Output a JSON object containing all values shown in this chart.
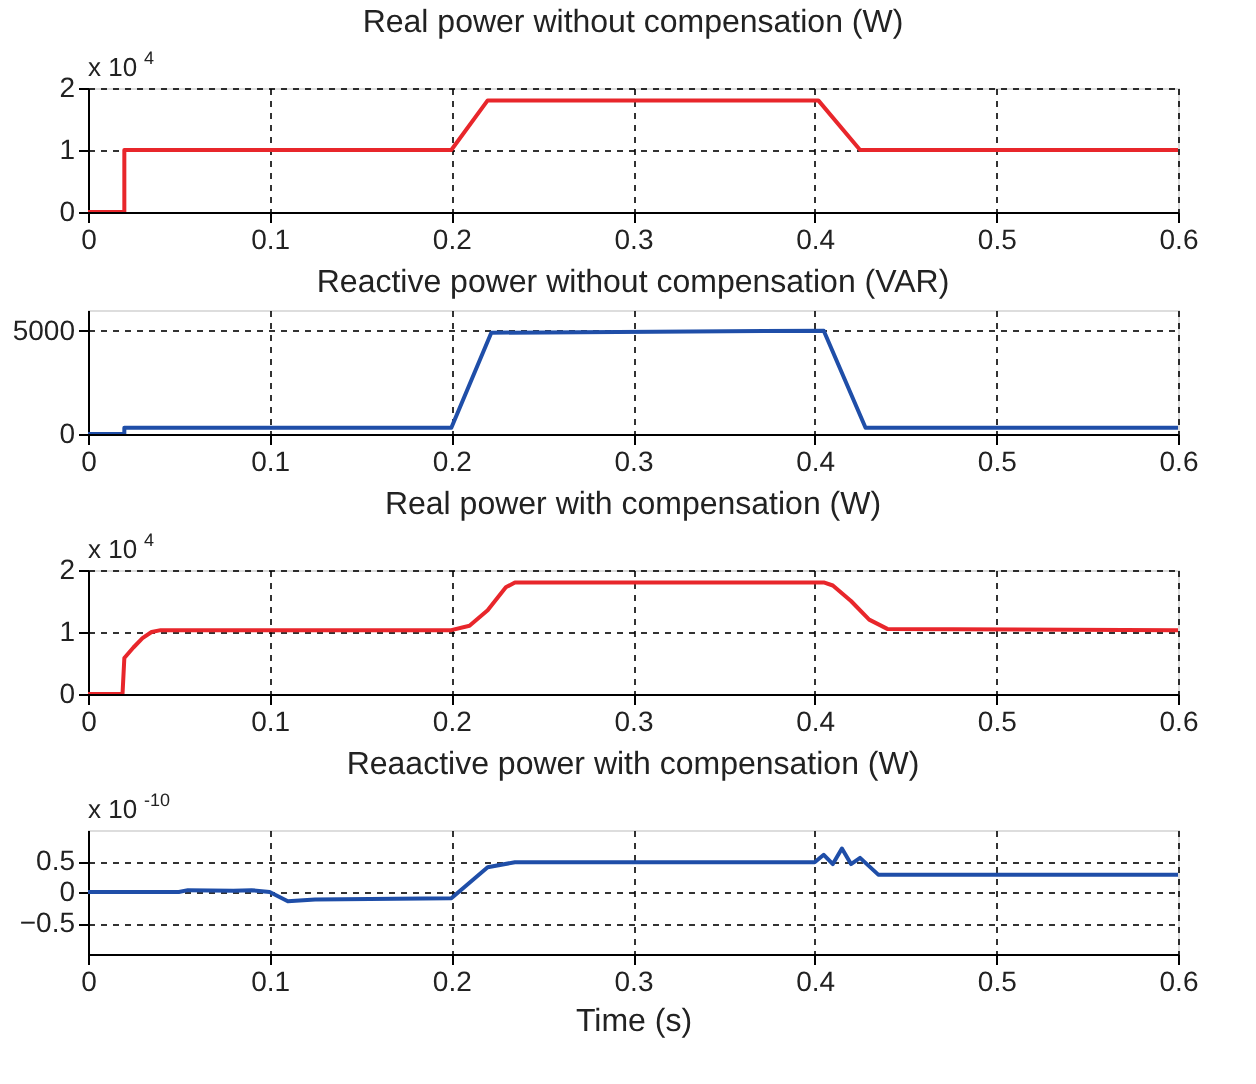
{
  "chart_data": [
    {
      "type": "line",
      "title": "Real power without compensation (W)",
      "annotations": [
        "x 10$^{4}$"
      ],
      "xlim": [
        0,
        0.6
      ],
      "xticks": [
        0,
        0.1,
        0.2,
        0.3,
        0.4,
        0.5,
        0.6
      ],
      "ylim": [
        0,
        2
      ],
      "yticks": [
        0,
        1,
        2
      ],
      "grid": true,
      "line_style": "solid",
      "x": [
        0,
        0.02,
        0.02,
        0.2,
        0.22,
        0.402,
        0.425,
        0.6
      ],
      "series": [
        {
          "color": "#e8262b",
          "values": [
            0,
            0,
            1,
            1,
            1.8,
            1.8,
            1,
            1
          ]
        }
      ]
    },
    {
      "type": "line",
      "title": "Reactive power without compensation (VAR)",
      "xlim": [
        0,
        0.6
      ],
      "xticks": [
        0,
        0.1,
        0.2,
        0.3,
        0.4,
        0.5,
        0.6
      ],
      "ylim": [
        0,
        6000
      ],
      "yticks": [
        0,
        5000
      ],
      "grid": true,
      "line_style": "solid",
      "x": [
        0,
        0.02,
        0.02,
        0.2,
        0.222,
        0.405,
        0.428,
        0.6
      ],
      "series": [
        {
          "color": "#1f4ea8",
          "values": [
            0,
            0,
            300,
            300,
            4900,
            5000,
            300,
            300
          ]
        }
      ]
    },
    {
      "type": "line",
      "title": "Real power with compensation (W)",
      "annotations": [
        "x 10$^{4}$"
      ],
      "xlim": [
        0,
        0.6
      ],
      "xticks": [
        0,
        0.1,
        0.2,
        0.3,
        0.4,
        0.5,
        0.6
      ],
      "ylim": [
        0,
        2
      ],
      "yticks": [
        0,
        1,
        2
      ],
      "grid": true,
      "line_style": "solid",
      "x": [
        0,
        0.019,
        0.02,
        0.025,
        0.03,
        0.035,
        0.04,
        0.2,
        0.21,
        0.22,
        0.23,
        0.235,
        0.405,
        0.41,
        0.42,
        0.43,
        0.44,
        0.6
      ],
      "series": [
        {
          "color": "#e8262b",
          "values": [
            0,
            0,
            0.58,
            0.75,
            0.9,
            1,
            1.03,
            1.03,
            1.1,
            1.35,
            1.72,
            1.8,
            1.8,
            1.75,
            1.5,
            1.2,
            1.05,
            1.03
          ]
        }
      ]
    },
    {
      "type": "line",
      "title": "Reaactive power with compensation (W)",
      "xlabel": "Time (s)",
      "annotations": [
        "x 10$^{-10}$"
      ],
      "xlim": [
        0,
        0.6
      ],
      "xticks": [
        0,
        0.1,
        0.2,
        0.3,
        0.4,
        0.5,
        0.6
      ],
      "ylim": [
        -1,
        1
      ],
      "yticks": [
        {
          "value": -0.5,
          "label": "−0.5"
        },
        0,
        0.5
      ],
      "grid": true,
      "line_style": "solid",
      "x": [
        0,
        0.05,
        0.055,
        0.08,
        0.09,
        0.1,
        0.11,
        0.125,
        0.2,
        0.21,
        0.22,
        0.235,
        0.4,
        0.405,
        0.41,
        0.415,
        0.42,
        0.425,
        0.435,
        0.6
      ],
      "series": [
        {
          "color": "#1f4ea8",
          "values": [
            0,
            0,
            0.03,
            0.02,
            0.03,
            0,
            -0.15,
            -0.12,
            -0.1,
            0.15,
            0.4,
            0.48,
            0.48,
            0.6,
            0.45,
            0.7,
            0.45,
            0.55,
            0.28,
            0.28
          ]
        }
      ]
    }
  ]
}
